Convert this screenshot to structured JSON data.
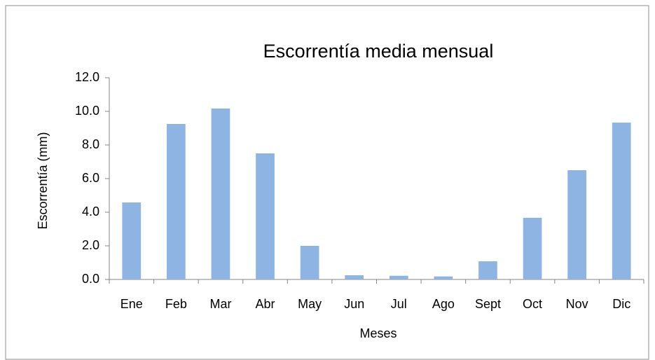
{
  "chart_data": {
    "type": "bar",
    "title": "Escorrentía media mensual",
    "x_label": "Meses",
    "y_label": "Escorrentía (mm)",
    "categories": [
      "Ene",
      "Feb",
      "Mar",
      "Abr",
      "May",
      "Jun",
      "Jul",
      "Ago",
      "Sept",
      "Oct",
      "Nov",
      "Dic"
    ],
    "values": [
      4.58,
      9.25,
      10.17,
      7.5,
      2.0,
      0.25,
      0.22,
      0.18,
      1.08,
      3.67,
      6.5,
      9.33
    ],
    "color": "#8eb4e3",
    "ylim": [
      0,
      12
    ],
    "yticks": [
      {
        "value": 0,
        "label": "0.0"
      },
      {
        "value": 2,
        "label": "2.0"
      },
      {
        "value": 4,
        "label": "4.0"
      },
      {
        "value": 6,
        "label": "6.0"
      },
      {
        "value": 8,
        "label": "8.0"
      },
      {
        "value": 10,
        "label": "10.0"
      },
      {
        "value": 12,
        "label": "12.0"
      }
    ],
    "grid": false
  }
}
